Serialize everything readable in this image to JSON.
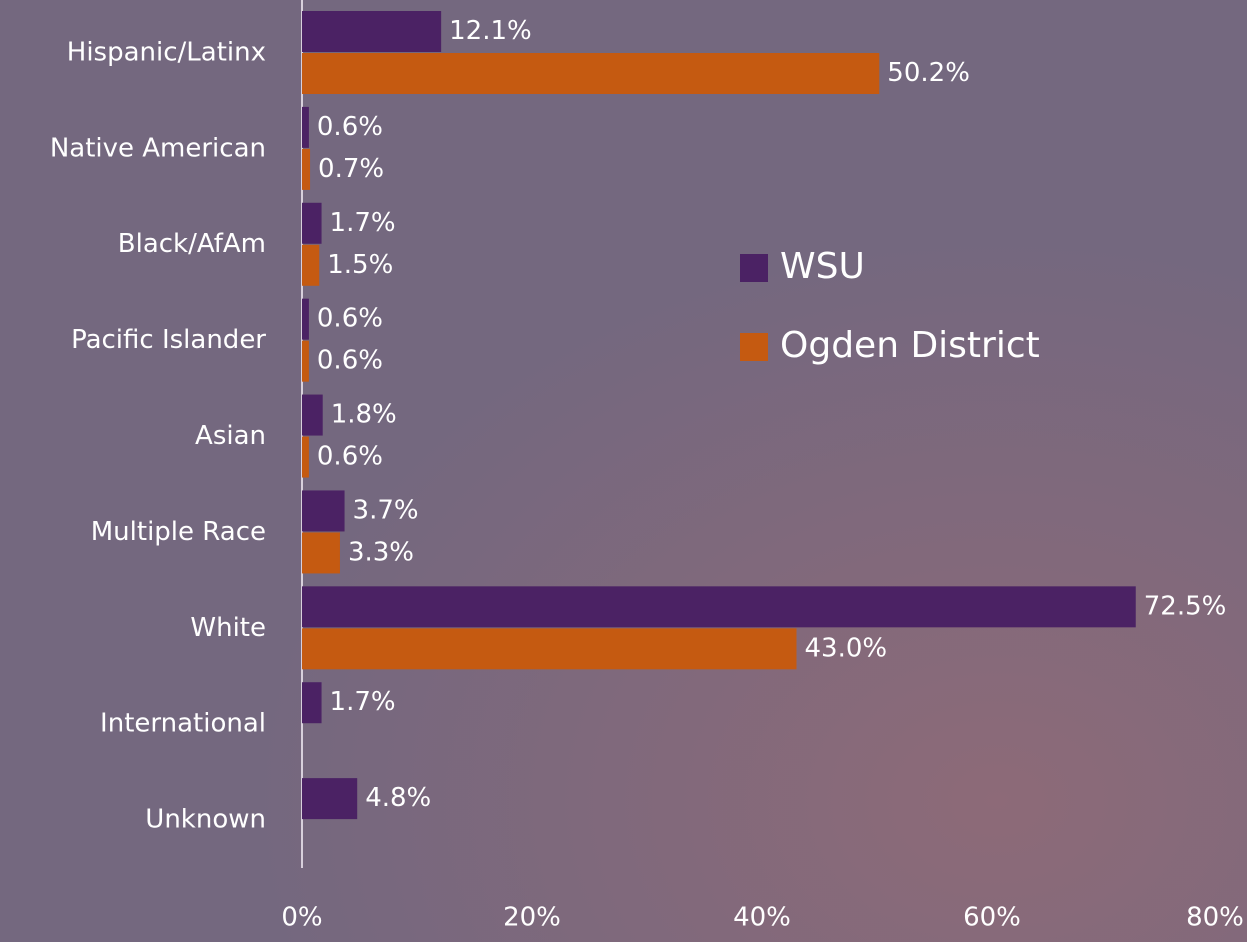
{
  "chart_data": {
    "type": "bar",
    "orientation": "horizontal",
    "categories": [
      "Hispanic/Latinx",
      "Native American",
      "Black/AfAm",
      "Pacific Islander",
      "Asian",
      "Multiple Race",
      "White",
      "International",
      "Unknown"
    ],
    "series": [
      {
        "name": "WSU",
        "color": "#4b2264",
        "values": [
          12.1,
          0.6,
          1.7,
          0.6,
          1.8,
          3.7,
          72.5,
          1.7,
          4.8
        ],
        "value_labels": [
          "12.1%",
          "0.6%",
          "1.7%",
          "0.6%",
          "1.8%",
          "3.7%",
          "72.5%",
          "1.7%",
          "4.8%"
        ]
      },
      {
        "name": "Ogden District",
        "color": "#c55a11",
        "values": [
          50.2,
          0.7,
          1.5,
          0.6,
          0.6,
          3.3,
          43.0,
          null,
          null
        ],
        "value_labels": [
          "50.2%",
          "0.7%",
          "1.5%",
          "0.6%",
          "0.6%",
          "3.3%",
          "43.0%",
          null,
          null
        ]
      }
    ],
    "xlim": [
      0,
      80
    ],
    "xticks": [
      {
        "value": 0,
        "label": "0%"
      },
      {
        "value": 20,
        "label": "20%"
      },
      {
        "value": 40,
        "label": "40%"
      },
      {
        "value": 60,
        "label": "60%"
      },
      {
        "value": 80,
        "label": "80%"
      }
    ]
  }
}
